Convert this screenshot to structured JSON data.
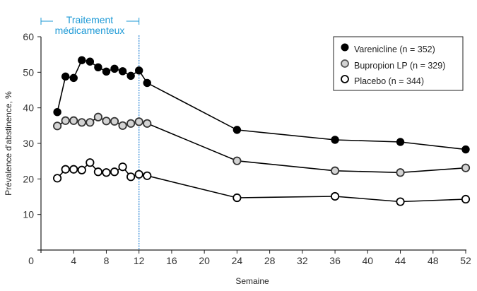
{
  "chart_data": {
    "type": "line",
    "title": "",
    "xlabel": "Semaine",
    "ylabel": "Prévalence d'abstinence, %",
    "xlim": [
      0,
      52
    ],
    "ylim": [
      0,
      60
    ],
    "xticks": [
      0,
      4,
      8,
      12,
      16,
      20,
      24,
      28,
      32,
      36,
      40,
      44,
      48,
      52
    ],
    "yticks": [
      10,
      20,
      30,
      40,
      50,
      60
    ],
    "grid": false,
    "legend_position": "top-right",
    "annotation": {
      "label_line1": "Traitement",
      "label_line2": "médicamenteux",
      "x_start": 0,
      "x_end": 12,
      "color": "#1e9ad6",
      "vline_x": 12,
      "vline_color": "#3b8fd9"
    },
    "series": [
      {
        "name": "Varenicline (n = 352)",
        "marker": "filled-black",
        "fill": "#000000",
        "x": [
          2,
          3,
          4,
          5,
          6,
          7,
          8,
          9,
          10,
          11,
          12,
          13,
          24,
          36,
          44,
          52
        ],
        "values": [
          38.8,
          48.8,
          48.4,
          53.4,
          53.0,
          51.4,
          50.2,
          51.0,
          50.3,
          49.0,
          50.5,
          47.0,
          33.8,
          31.0,
          30.4,
          28.3
        ]
      },
      {
        "name": "Bupropion LP (n = 329)",
        "marker": "filled-gray",
        "fill": "#d3d3d3",
        "x": [
          2,
          3,
          4,
          5,
          6,
          7,
          8,
          9,
          10,
          11,
          12,
          13,
          24,
          36,
          44,
          52
        ],
        "values": [
          34.9,
          36.4,
          36.4,
          35.9,
          35.9,
          37.4,
          36.3,
          36.2,
          35.0,
          35.6,
          36.1,
          35.6,
          25.1,
          22.3,
          21.8,
          23.1
        ]
      },
      {
        "name": "Placebo (n = 344)",
        "marker": "open-circle",
        "fill": "#ffffff",
        "x": [
          2,
          3,
          4,
          5,
          6,
          7,
          8,
          9,
          10,
          11,
          12,
          13,
          24,
          36,
          44,
          52
        ],
        "values": [
          20.2,
          22.7,
          22.7,
          22.5,
          24.6,
          22.0,
          21.8,
          22.0,
          23.4,
          20.6,
          21.3,
          20.9,
          14.7,
          15.1,
          13.6,
          14.3
        ]
      }
    ]
  }
}
